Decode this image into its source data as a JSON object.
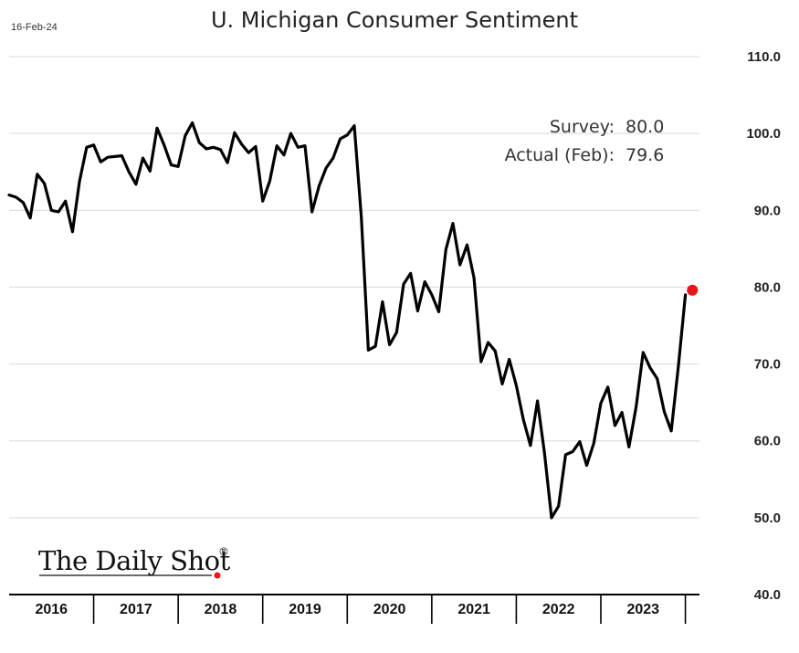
{
  "header": {
    "date": "16-Feb-24"
  },
  "annotation": {
    "survey_label": "Survey:",
    "survey_value": "80.0",
    "actual_label": "Actual (Feb):",
    "actual_value": "79.6"
  },
  "logo": {
    "text": "The Daily Shot",
    "reg": "®",
    "dot_color": "#e8141c"
  },
  "colors": {
    "line": "#000000",
    "grid": "#d9d9d9",
    "marker": "#e8141c"
  },
  "chart_data": {
    "type": "line",
    "title": "U. Michigan Consumer Sentiment",
    "xlabel": "",
    "ylabel": "",
    "ylim": [
      40,
      110
    ],
    "yticks": [
      "40.0",
      "50.0",
      "60.0",
      "70.0",
      "80.0",
      "90.0",
      "100.0",
      "110.0"
    ],
    "x_range": [
      2016.0,
      2024.1667
    ],
    "x_categories": [
      "2016",
      "2017",
      "2018",
      "2019",
      "2020",
      "2021",
      "2022",
      "2023"
    ],
    "grid": true,
    "series": [
      {
        "x": [
          2016.0,
          2016.083,
          2016.167,
          2016.25,
          2016.333,
          2016.417,
          2016.5,
          2016.583,
          2016.667,
          2016.75,
          2016.833,
          2016.917,
          2017.0,
          2017.083,
          2017.167,
          2017.25,
          2017.333,
          2017.417,
          2017.5,
          2017.583,
          2017.667,
          2017.75,
          2017.833,
          2017.917,
          2018.0,
          2018.083,
          2018.167,
          2018.25,
          2018.333,
          2018.417,
          2018.5,
          2018.583,
          2018.667,
          2018.75,
          2018.833,
          2018.917,
          2019.0,
          2019.083,
          2019.167,
          2019.25,
          2019.333,
          2019.417,
          2019.5,
          2019.583,
          2019.667,
          2019.75,
          2019.833,
          2019.917,
          2020.0,
          2020.083,
          2020.167,
          2020.25,
          2020.333,
          2020.417,
          2020.5,
          2020.583,
          2020.667,
          2020.75,
          2020.833,
          2020.917,
          2021.0,
          2021.083,
          2021.167,
          2021.25,
          2021.333,
          2021.417,
          2021.5,
          2021.583,
          2021.667,
          2021.75,
          2021.833,
          2021.917,
          2022.0,
          2022.083,
          2022.167,
          2022.25,
          2022.333,
          2022.417,
          2022.5,
          2022.583,
          2022.667,
          2022.75,
          2022.833,
          2022.917,
          2023.0,
          2023.083,
          2023.167,
          2023.25,
          2023.333,
          2023.417,
          2023.5,
          2023.583,
          2023.667,
          2023.75,
          2023.833,
          2023.917,
          2024.0
        ],
        "values": [
          92.0,
          91.7,
          91.0,
          89.0,
          94.7,
          93.5,
          90.0,
          89.8,
          91.2,
          87.2,
          93.8,
          98.2,
          98.5,
          96.3,
          96.9,
          97.0,
          97.1,
          95.0,
          93.4,
          96.8,
          95.1,
          100.7,
          98.5,
          95.9,
          95.7,
          99.7,
          101.4,
          98.8,
          98.0,
          98.2,
          97.9,
          96.2,
          100.1,
          98.6,
          97.5,
          98.3,
          91.2,
          93.8,
          98.4,
          97.2,
          100.0,
          98.2,
          98.4,
          89.8,
          93.2,
          95.5,
          96.8,
          99.3,
          99.8,
          101.0,
          89.1,
          71.8,
          72.3,
          78.1,
          72.5,
          74.1,
          80.4,
          81.8,
          76.9,
          80.7,
          79.0,
          76.8,
          84.9,
          88.3,
          82.9,
          85.5,
          81.2,
          70.3,
          72.8,
          71.7,
          67.4,
          70.6,
          67.2,
          62.8,
          59.4,
          65.2,
          58.4,
          50.0,
          51.5,
          58.2,
          58.6,
          59.9,
          56.8,
          59.7,
          64.9,
          67.0,
          62.0,
          63.7,
          59.2,
          64.4,
          71.5,
          69.5,
          68.1,
          63.8,
          61.3,
          69.7,
          79.0
        ],
        "marker": {
          "x": 2024.083,
          "y": 79.6
        }
      }
    ]
  }
}
